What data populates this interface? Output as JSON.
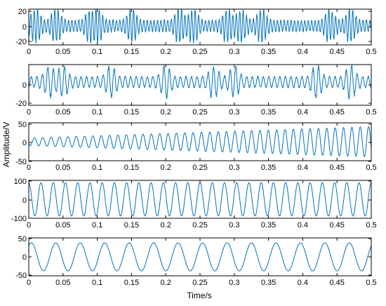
{
  "chart_data": {
    "type": "line",
    "layout": "stacked-subplots",
    "xlabel": "Time/s",
    "ylabel": "Amplitude/V",
    "xlim": [
      0,
      0.5
    ],
    "x_ticks": [
      "0",
      "0.05",
      "0.1",
      "0.15",
      "0.2",
      "0.25",
      "0.3",
      "0.35",
      "0.4",
      "0.45",
      "0.5"
    ],
    "line_color": "#0072BD",
    "grid": false,
    "subplots": [
      {
        "ylim": [
          -25,
          22
        ],
        "y_ticks": [
          "20",
          "0",
          "-20"
        ],
        "signal": "high-frequency oscillation, about 100 cycles over 0.5 s, bursty envelope",
        "approx_frequency_hz": 200,
        "approx_peak_amplitude": 21,
        "burst_peaks_s": [
          0.01,
          0.04,
          0.09,
          0.1,
          0.15,
          0.22,
          0.24,
          0.29,
          0.31,
          0.34,
          0.44,
          0.47
        ]
      },
      {
        "ylim": [
          -20,
          15
        ],
        "y_ticks": [
          "0",
          "-20"
        ],
        "signal": "oscillation, about 62 cycles over 0.5 s",
        "approx_frequency_hz": 124,
        "approx_peak_amplitude": 13,
        "burst_peaks_s": [
          0.03,
          0.05,
          0.12,
          0.2,
          0.27,
          0.3,
          0.42,
          0.47
        ]
      },
      {
        "ylim": [
          -50,
          50
        ],
        "y_ticks": [
          "50",
          "0",
          "-50"
        ],
        "signal": "oscillation, about 41 cycles over 0.5 s, amplitude growing from ~10 to ~40",
        "approx_frequency_hz": 82,
        "amplitude_start": 10,
        "amplitude_end": 40
      },
      {
        "ylim": [
          -100,
          100
        ],
        "y_ticks": [
          "100",
          "0",
          "-100"
        ],
        "signal": "oscillation, about 28 cycles over 0.5 s",
        "approx_frequency_hz": 56,
        "approx_peak_amplitude": 88
      },
      {
        "ylim": [
          -50,
          50
        ],
        "y_ticks": [
          "50",
          "0",
          "-50"
        ],
        "signal": "oscillation, about 14 cycles over 0.5 s",
        "approx_frequency_hz": 28,
        "approx_peak_amplitude": 37
      }
    ]
  }
}
